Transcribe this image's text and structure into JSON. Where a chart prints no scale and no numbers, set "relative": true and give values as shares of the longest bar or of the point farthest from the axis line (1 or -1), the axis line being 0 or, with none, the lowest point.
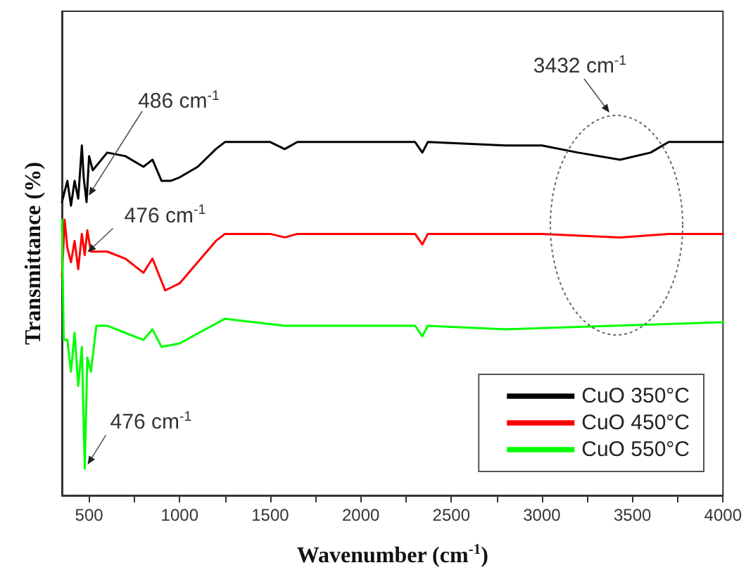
{
  "chart_data": {
    "type": "line",
    "relative": true,
    "xlabel": "Wavenumber (cm$^{-1}$)",
    "ylabel": "Transmittance (%)",
    "xlim": [
      350,
      4000
    ],
    "xticks": [
      500,
      {
        "value": 750,
        "label": null
      },
      1000,
      {
        "value": 1250,
        "label": null
      },
      1500,
      {
        "value": 1750,
        "label": null
      },
      2000,
      {
        "value": 2250,
        "label": null
      },
      2500,
      {
        "value": 2750,
        "label": null
      },
      3000,
      {
        "value": 3250,
        "label": null
      },
      3500,
      {
        "value": 3750,
        "label": null
      },
      4000
    ],
    "legend": "bottom right",
    "grid": false,
    "marker": "none",
    "line_style": "solid",
    "annotations": [
      "486 cm$^{-1}$",
      {
        "text": "476 cm$^{-1}$",
        "x": 476,
        "y": 0.68
      },
      {
        "text": "476 cm$^{-1}$",
        "x": 476,
        "y": 0.075
      },
      "3432 cm$^{-1}$"
    ],
    "series": [
      {
        "name": "CuO 350°C",
        "color": "#000000",
        "x": [
          350,
          380,
          400,
          420,
          440,
          460,
          470,
          486,
          500,
          520,
          600,
          700,
          800,
          850,
          900,
          950,
          1000,
          1100,
          1200,
          1250,
          1500,
          1580,
          1650,
          2000,
          2300,
          2340,
          2370,
          2800,
          3000,
          3200,
          3432,
          3600,
          3700,
          4000
        ],
        "values": [
          0.83,
          0.89,
          0.82,
          0.89,
          0.84,
          0.99,
          0.9,
          0.83,
          0.96,
          0.92,
          0.97,
          0.96,
          0.93,
          0.95,
          0.89,
          0.89,
          0.9,
          0.93,
          0.98,
          1.0,
          1.0,
          0.98,
          1.0,
          1.0,
          1.0,
          0.97,
          1.0,
          0.99,
          0.99,
          0.97,
          0.95,
          0.97,
          1.0,
          1.0
        ]
      },
      {
        "name": "CuO 450°C",
        "color": "#ff0000",
        "x": [
          350,
          365,
          380,
          400,
          420,
          440,
          460,
          476,
          490,
          510,
          600,
          700,
          800,
          850,
          920,
          1000,
          1100,
          1200,
          1250,
          1500,
          1580,
          1650,
          2300,
          2340,
          2370,
          3000,
          3432,
          3700,
          4000
        ],
        "values": [
          0.62,
          0.78,
          0.7,
          0.66,
          0.72,
          0.64,
          0.74,
          0.68,
          0.75,
          0.69,
          0.69,
          0.67,
          0.63,
          0.67,
          0.58,
          0.6,
          0.66,
          0.72,
          0.74,
          0.74,
          0.73,
          0.74,
          0.74,
          0.71,
          0.74,
          0.74,
          0.73,
          0.74,
          0.74
        ]
      },
      {
        "name": "CuO 550°C",
        "color": "#00ff00",
        "x": [
          350,
          360,
          380,
          400,
          420,
          440,
          460,
          476,
          490,
          510,
          540,
          600,
          700,
          800,
          850,
          900,
          1000,
          1250,
          1580,
          2300,
          2340,
          2370,
          2800,
          4000
        ],
        "values": [
          0.78,
          0.44,
          0.44,
          0.35,
          0.46,
          0.31,
          0.42,
          0.075,
          0.39,
          0.35,
          0.48,
          0.48,
          0.46,
          0.44,
          0.47,
          0.42,
          0.43,
          0.5,
          0.48,
          0.48,
          0.45,
          0.48,
          0.47,
          0.49
        ]
      }
    ]
  }
}
